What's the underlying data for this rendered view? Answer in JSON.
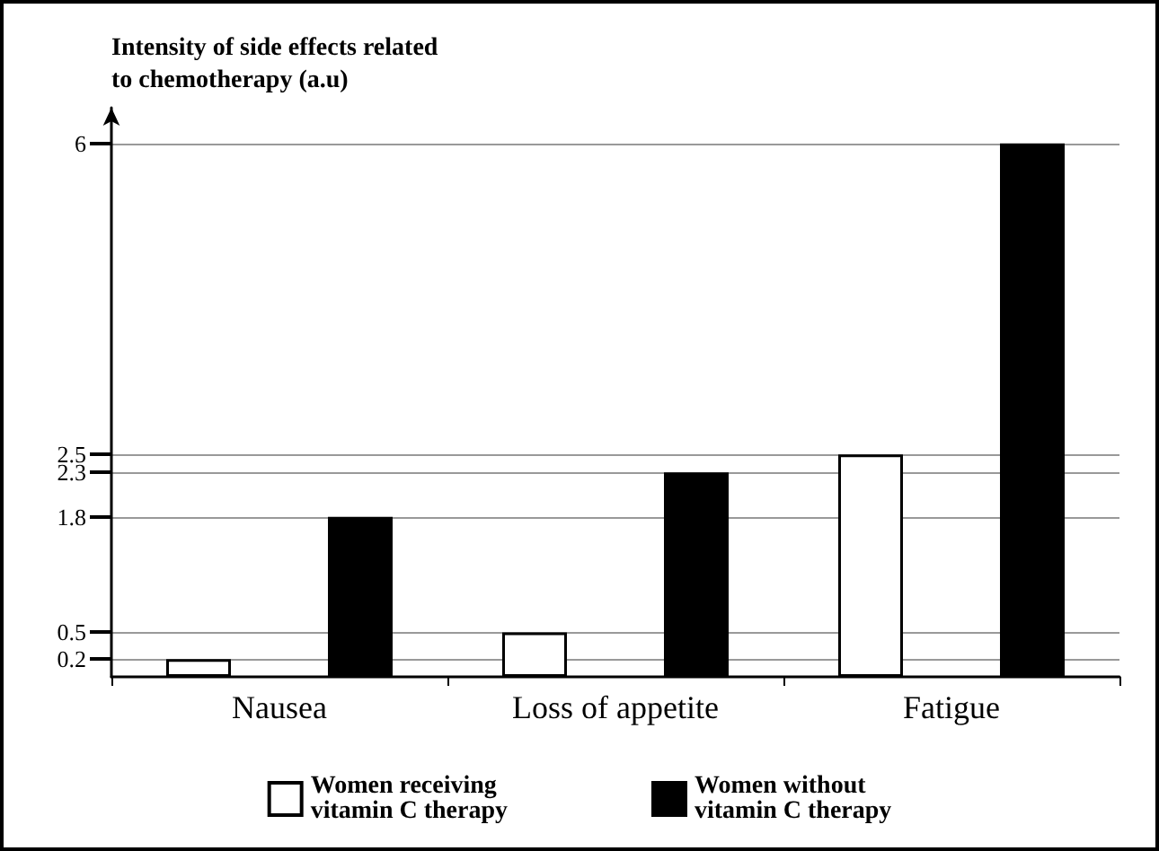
{
  "chart_data": {
    "type": "bar",
    "ylabel": "Intensity of side effects related\nto chemotherapy (a.u)",
    "categories": [
      "Nausea",
      "Loss of appetite",
      "Fatigue"
    ],
    "series": [
      {
        "name": "Women receiving\nvitamin C therapy",
        "color": "#ffffff",
        "values": [
          0.2,
          0.5,
          2.5
        ]
      },
      {
        "name": "Women without\nvitamin C therapy",
        "color": "#000000",
        "values": [
          1.8,
          2.3,
          6
        ]
      }
    ],
    "ylim": [
      0,
      6.4
    ],
    "yticks": [
      0.2,
      0.5,
      1.8,
      2.3,
      2.5,
      6
    ],
    "grid": true,
    "legend": "bottom"
  }
}
